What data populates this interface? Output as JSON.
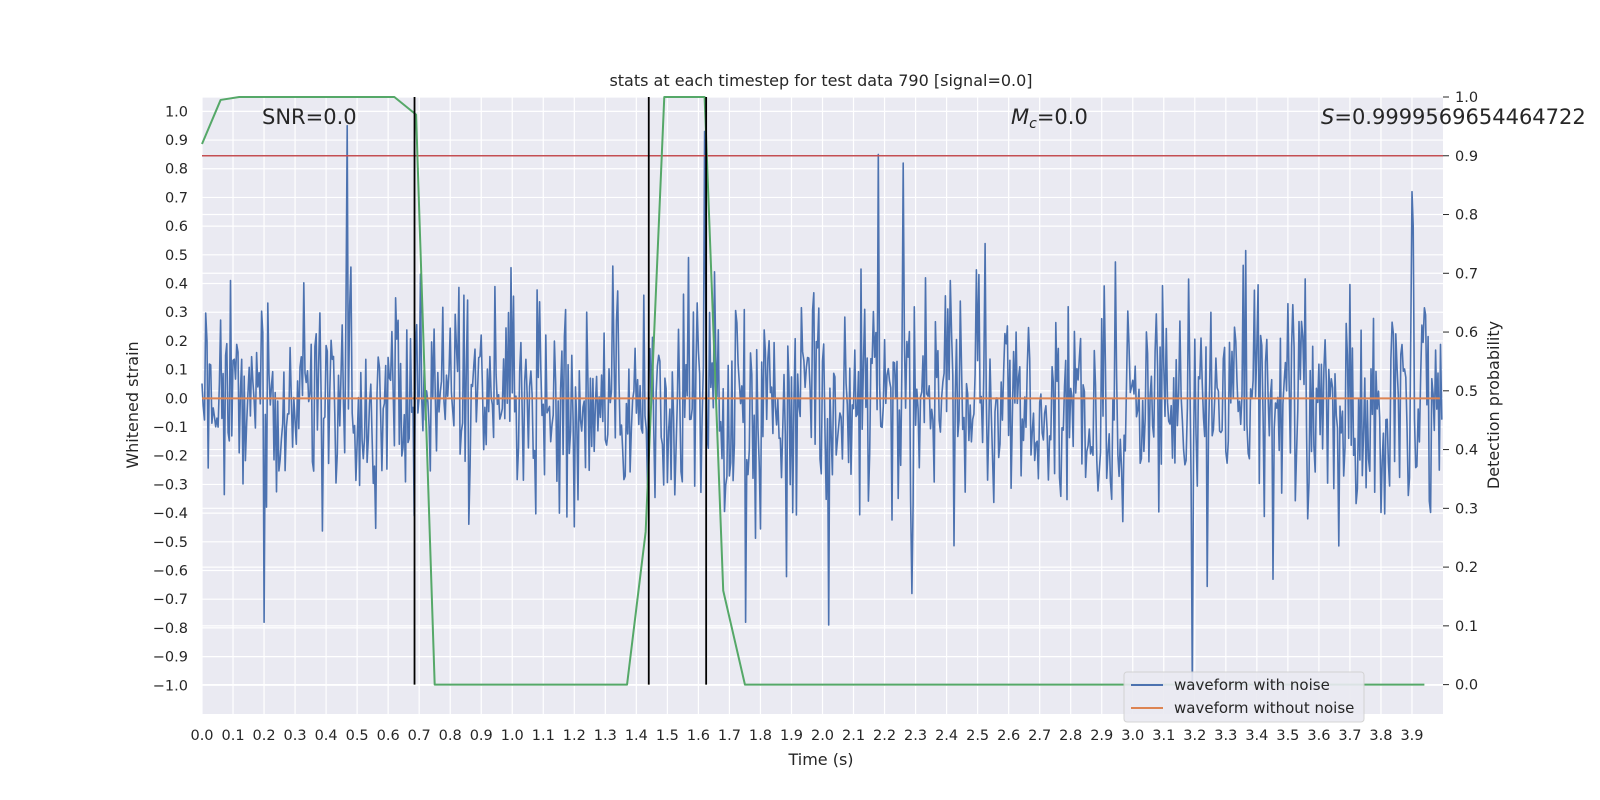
{
  "chart_data": {
    "type": "line",
    "title": "stats at each timestep for test data 790 [signal=0.0]",
    "xlabel": "Time (s)",
    "ylabel_left": "Whitened strain",
    "ylabel_right": "Detection probability",
    "xlim": [
      0.0,
      4.0
    ],
    "ylim_left": [
      -1.1,
      1.05
    ],
    "ylim_right": [
      -0.05,
      1.0
    ],
    "x_ticks": [
      0.0,
      0.1,
      0.2,
      0.3,
      0.4,
      0.5,
      0.6,
      0.7,
      0.8,
      0.9,
      1.0,
      1.1,
      1.2,
      1.3,
      1.4,
      1.5,
      1.6,
      1.7,
      1.8,
      1.9,
      2.0,
      2.1,
      2.2,
      2.3,
      2.4,
      2.5,
      2.6,
      2.7,
      2.8,
      2.9,
      3.0,
      3.1,
      3.2,
      3.3,
      3.4,
      3.5,
      3.6,
      3.7,
      3.8,
      3.9
    ],
    "y_ticks_left": [
      1.0,
      0.9,
      0.8,
      0.7,
      0.6,
      0.5,
      0.4,
      0.3,
      0.2,
      0.1,
      0.0,
      -0.1,
      -0.2,
      -0.3,
      -0.4,
      -0.5,
      -0.6,
      -0.7,
      -0.8,
      -0.9,
      -1.0
    ],
    "y_ticks_right": [
      1.0,
      0.9,
      0.8,
      0.7,
      0.6,
      0.5,
      0.4,
      0.3,
      0.2,
      0.1,
      0.0
    ],
    "grid": true,
    "legend_position": "lower-right",
    "annotations": [
      {
        "id": "snr",
        "label": "SNR=0.0"
      },
      {
        "id": "mc",
        "label": "=0.0",
        "symbol": "M",
        "subscript": "c"
      },
      {
        "id": "s",
        "label": "=0.9999569654464722",
        "symbol": "S"
      }
    ],
    "series": [
      {
        "name": "waveform with noise",
        "axis": "left",
        "color": "#4c72b0",
        "kind": "noise",
        "sample_spacing": 0.004,
        "amplitude_std": 0.19
      },
      {
        "name": "waveform without noise",
        "axis": "left",
        "color": "#dd8452",
        "x": [
          0.0,
          3.99
        ],
        "y": [
          0.0,
          0.0
        ]
      },
      {
        "axis": "right",
        "color": "#55a868",
        "x": [
          0.0,
          0.06,
          0.12,
          0.18,
          0.25,
          0.31,
          0.37,
          0.43,
          0.5,
          0.56,
          0.62,
          0.69,
          0.75,
          0.81,
          1.37,
          1.43,
          1.49,
          1.55,
          1.62,
          1.68,
          1.75,
          3.94
        ],
        "y": [
          0.92,
          0.995,
          1.0,
          1.0,
          1.0,
          1.0,
          1.0,
          1.0,
          1.0,
          1.0,
          1.0,
          0.97,
          0.0,
          0.0,
          0.0,
          0.26,
          1.0,
          1.0,
          1.0,
          0.16,
          0.0,
          0.0
        ]
      }
    ],
    "threshold_line": {
      "axis": "right",
      "y": 0.9,
      "color": "#c44e52"
    },
    "event_lines": [
      0.685,
      1.44,
      1.625
    ],
    "event_line_ylim_right": [
      0.0,
      1.0
    ],
    "noise_spikes": [
      {
        "x": 0.47,
        "y": 0.95
      },
      {
        "x": 2.18,
        "y": 0.85
      },
      {
        "x": 2.26,
        "y": 0.82
      },
      {
        "x": 3.9,
        "y": 0.72
      },
      {
        "x": 0.2,
        "y": -0.78
      },
      {
        "x": 1.75,
        "y": -0.78
      },
      {
        "x": 2.02,
        "y": -0.79
      },
      {
        "x": 3.19,
        "y": -1.0
      },
      {
        "x": 1.62,
        "y": 0.93
      }
    ],
    "colors": {
      "axes_bg": "#eaeaf2",
      "grid": "#ffffff",
      "text": "#262626"
    }
  }
}
